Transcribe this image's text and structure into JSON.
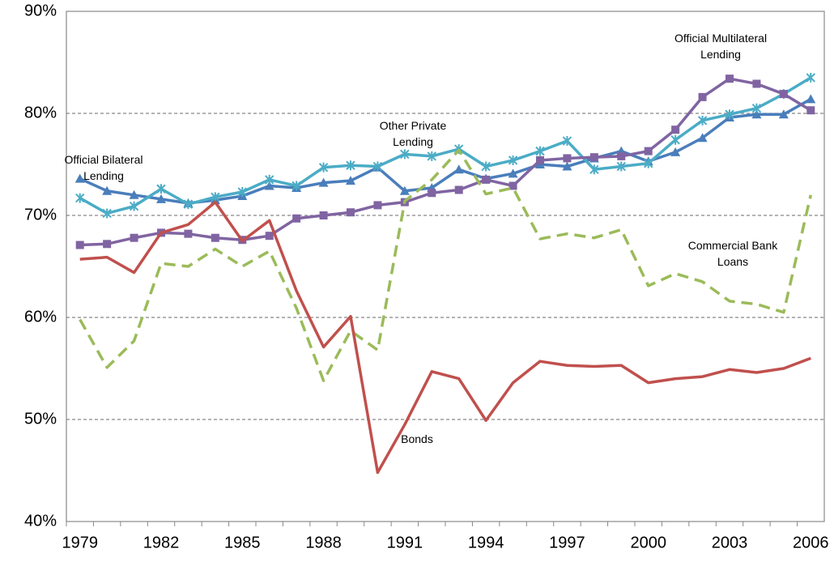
{
  "chart_data": {
    "type": "line",
    "categories": [
      1979,
      null,
      null,
      1982,
      null,
      null,
      1985,
      null,
      null,
      1988,
      null,
      null,
      1991,
      null,
      null,
      1994,
      null,
      null,
      1997,
      null,
      null,
      2000,
      null,
      null,
      2003,
      null,
      null,
      2006
    ],
    "ylim": [
      40,
      90
    ],
    "yticks": [
      {
        "value": 40,
        "label": "40%"
      },
      {
        "value": 50,
        "label": "50%"
      },
      {
        "value": 60,
        "label": "60%"
      },
      {
        "value": 70,
        "label": "70%"
      },
      {
        "value": 80,
        "label": "80%"
      },
      {
        "value": 90,
        "label": "90%"
      }
    ],
    "grid": true,
    "series": [
      {
        "name": "Official Bilateral Lending",
        "color": "#4a7ebb",
        "marker": "triangle",
        "values": [
          73.6,
          72.4,
          72.0,
          71.6,
          71.2,
          71.5,
          71.9,
          72.9,
          72.7,
          73.2,
          73.4,
          74.7,
          72.4,
          72.7,
          74.5,
          73.6,
          74.1,
          75.0,
          74.8,
          75.6,
          76.3,
          75.3,
          76.2,
          77.6,
          79.6,
          79.9,
          79.9,
          81.4
        ]
      },
      {
        "name": "Other Private Lending",
        "color": "#4bacc6",
        "marker": "star",
        "values": [
          71.7,
          70.2,
          70.9,
          72.6,
          71.1,
          71.8,
          72.3,
          73.5,
          72.9,
          74.7,
          74.9,
          74.8,
          76.0,
          75.8,
          76.5,
          74.8,
          75.4,
          76.3,
          77.3,
          74.5,
          74.8,
          75.1,
          77.4,
          79.3,
          79.9,
          80.5,
          81.9,
          83.5
        ]
      },
      {
        "name": "Official Multilateral Lending",
        "color": "#8064a2",
        "marker": "square",
        "values": [
          67.1,
          67.2,
          67.8,
          68.3,
          68.2,
          67.8,
          67.6,
          68.0,
          69.7,
          70.0,
          70.3,
          71.0,
          71.3,
          72.2,
          72.5,
          73.5,
          72.9,
          75.4,
          75.6,
          75.7,
          75.8,
          76.3,
          78.4,
          81.6,
          83.4,
          82.9,
          81.9,
          80.3
        ]
      },
      {
        "name": "Commercial Bank Loans",
        "color": "#9bbb59",
        "dashed": true,
        "values": [
          59.8,
          55.1,
          57.7,
          65.3,
          65.0,
          66.7,
          65.0,
          66.5,
          60.9,
          53.8,
          58.7,
          56.8,
          71.4,
          73.5,
          76.4,
          72.1,
          72.7,
          67.7,
          68.2,
          67.8,
          68.6,
          63.1,
          64.3,
          63.5,
          61.6,
          61.3,
          60.5,
          72.0
        ]
      },
      {
        "name": "Bonds",
        "color": "#c0504d",
        "values": [
          65.7,
          65.9,
          64.4,
          68.3,
          69.1,
          71.3,
          67.5,
          69.5,
          62.6,
          57.1,
          60.1,
          44.8,
          49.5,
          54.7,
          54.0,
          49.9,
          53.6,
          55.7,
          55.3,
          55.2,
          55.3,
          53.6,
          54.0,
          54.2,
          54.9,
          54.6,
          55.0,
          56.0
        ]
      }
    ]
  }
}
